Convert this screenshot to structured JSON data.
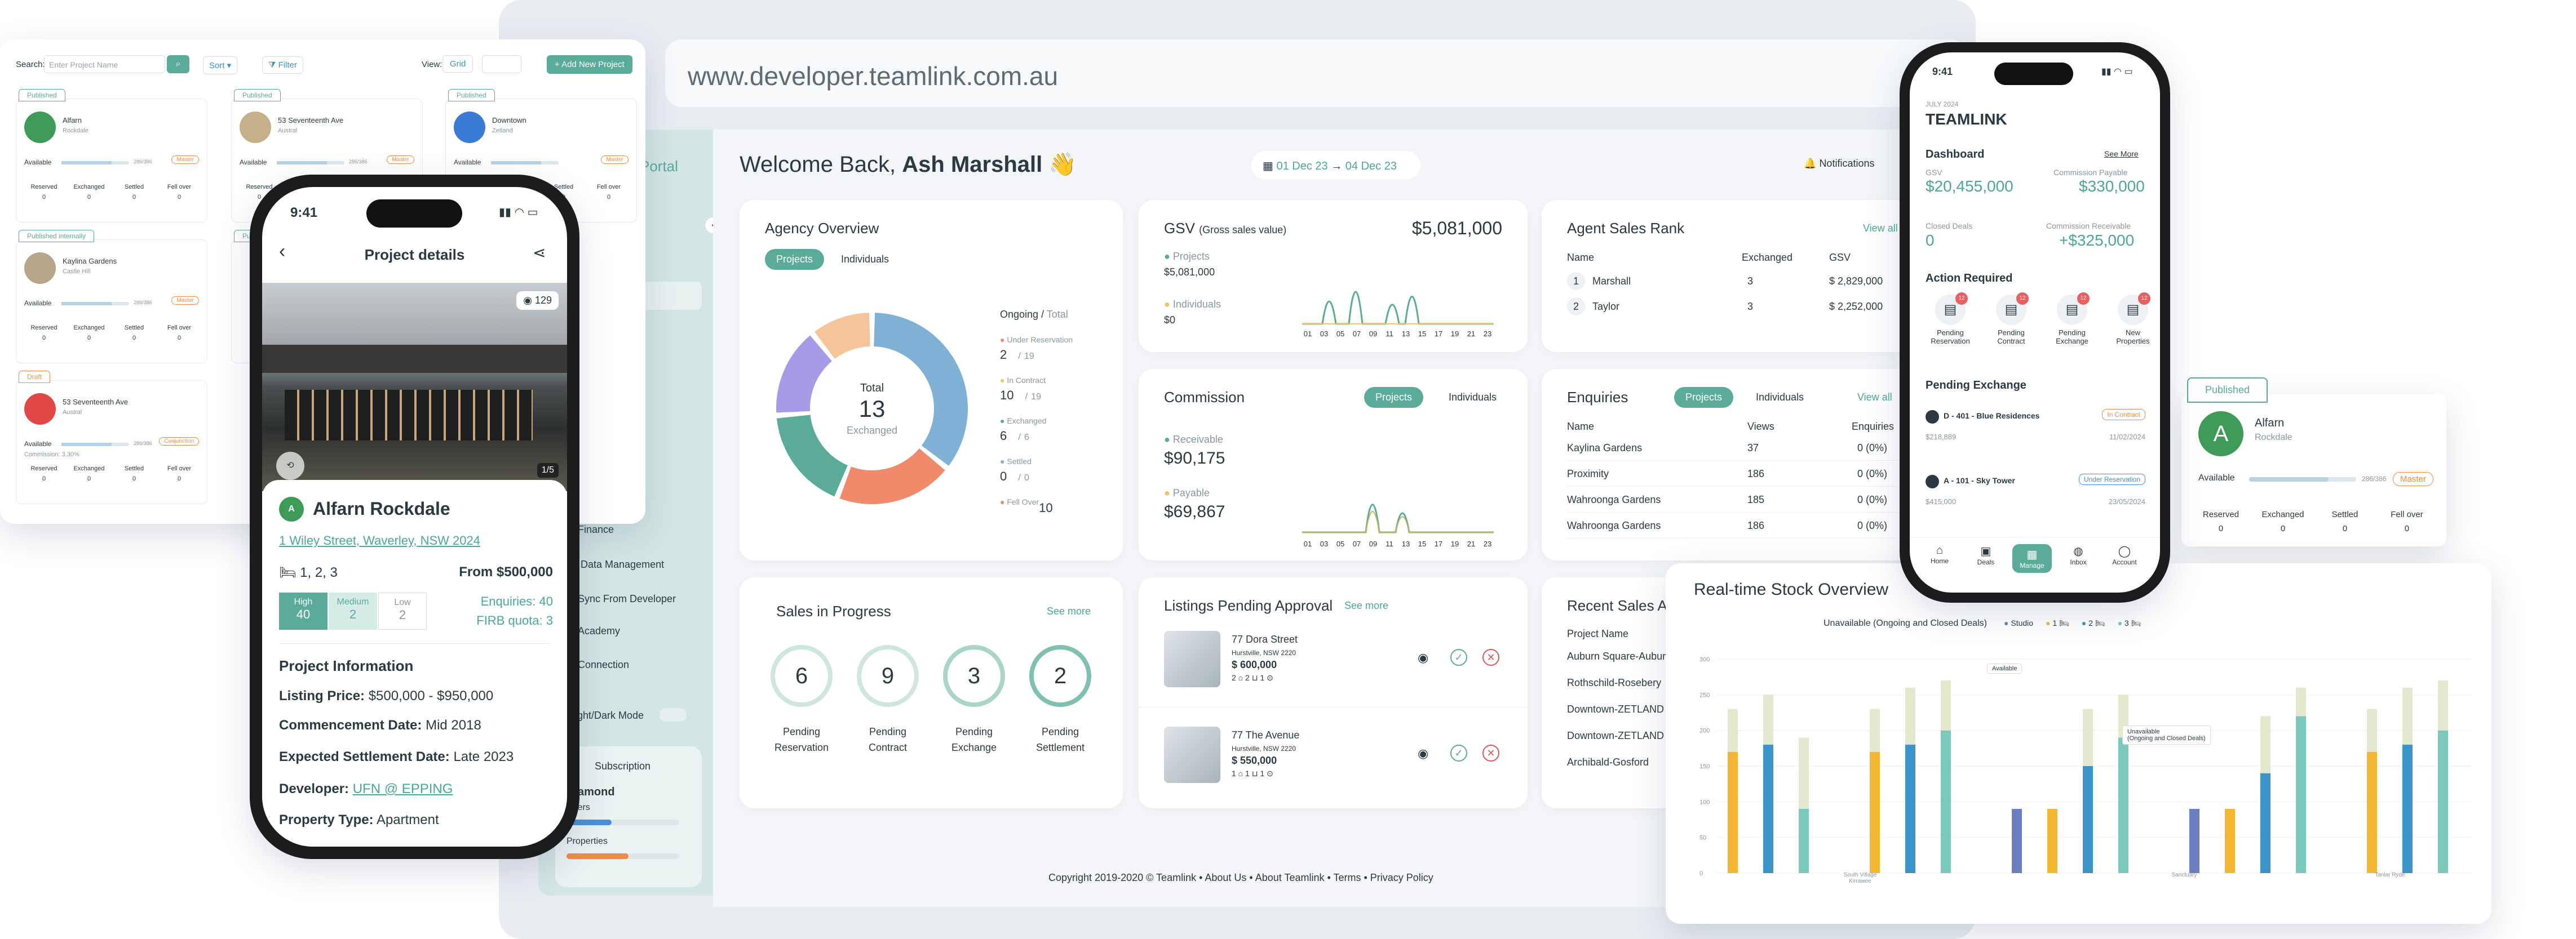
{
  "browser": {
    "url": "www.developer.teamlink.com.au"
  },
  "sidebar": {
    "portal_label": "Portal",
    "items": [
      "Finance",
      "Data Management",
      "Sync From Developer",
      "Academy",
      "Connection",
      "Light/Dark Mode"
    ],
    "subscription_label": "Subscription",
    "tier": "Diamond",
    "sub_rows": [
      "Users",
      "Properties"
    ]
  },
  "header": {
    "welcome": "Welcome Back,",
    "user": "Ash Marshall",
    "wave": "👋",
    "date_from": "01 Dec 23",
    "date_to": "04 Dec 23",
    "notifications": "Notifications"
  },
  "agency": {
    "title": "Agency Overview",
    "tabs": [
      "Projects",
      "Individuals"
    ],
    "total_label": "Total",
    "total": "13",
    "exchanged": "Exchanged",
    "col_head": "Ongoing",
    "col_head2": "Total",
    "stats": [
      {
        "label": "Under Reservation",
        "value": "2",
        "total": "19",
        "color": "#f08a6a"
      },
      {
        "label": "In Contract",
        "value": "10",
        "total": "19",
        "color": "#f4c26a"
      },
      {
        "label": "Exchanged",
        "value": "6",
        "total": "6",
        "color": "#5aab98"
      },
      {
        "label": "Settled",
        "value": "0",
        "total": "0",
        "color": "#7fb1d4"
      },
      {
        "label": "Fell Over",
        "value": "10",
        "total": "",
        "color": "#f08a6a"
      }
    ]
  },
  "donut": [
    {
      "value": 30,
      "color": "#7fb1d4"
    },
    {
      "value": 17,
      "color": "#f08a6a"
    },
    {
      "value": 15,
      "color": "#5aab98"
    },
    {
      "value": 13,
      "color": "#a79be8"
    },
    {
      "value": 9,
      "color": "#f5c49b"
    }
  ],
  "gsv": {
    "title": "GSV",
    "subtitle": "(Gross sales value)",
    "total": "$5,081,000",
    "projects_label": "Projects",
    "projects_value": "$5,081,000",
    "individuals_label": "Individuals",
    "individuals_value": "$0",
    "ticks": [
      "01",
      "03",
      "05",
      "07",
      "09",
      "11",
      "13",
      "15",
      "17",
      "19",
      "21",
      "23"
    ]
  },
  "commission": {
    "title": "Commission",
    "tabs": [
      "Projects",
      "Individuals"
    ],
    "receivable_label": "Receivable",
    "receivable": "$90,175",
    "payable_label": "Payable",
    "payable": "$69,867",
    "ticks": [
      "01",
      "03",
      "05",
      "07",
      "09",
      "11",
      "13",
      "15",
      "17",
      "19",
      "21",
      "23"
    ]
  },
  "agent_rank": {
    "title": "Agent Sales Rank",
    "view_all": "View all",
    "headers": [
      "Name",
      "Exchanged",
      "GSV"
    ],
    "rows": [
      {
        "rank": "1",
        "name": "Marshall",
        "exchanged": "3",
        "gsv": "$ 2,829,000"
      },
      {
        "rank": "2",
        "name": "Taylor",
        "exchanged": "3",
        "gsv": "$ 2,252,000"
      }
    ]
  },
  "enquiries": {
    "title": "Enquiries",
    "tabs": [
      "Projects",
      "Individuals"
    ],
    "view_all": "View all",
    "headers": [
      "Name",
      "Views",
      "Enquiries"
    ],
    "rows": [
      {
        "name": "Kaylina Gardens",
        "views": "37",
        "enq": "0 (0%)"
      },
      {
        "name": "Proximity",
        "views": "186",
        "enq": "0 (0%)"
      },
      {
        "name": "Wahroonga Gardens",
        "views": "185",
        "enq": "0 (0%)"
      },
      {
        "name": "Wahroonga Gardens",
        "views": "186",
        "enq": "0 (0%)"
      }
    ]
  },
  "sales_progress": {
    "title": "Sales in Progress",
    "see_more": "See more",
    "items": [
      {
        "value": "6",
        "label1": "Pending",
        "label2": "Reservation"
      },
      {
        "value": "9",
        "label1": "Pending",
        "label2": "Contract"
      },
      {
        "value": "3",
        "label1": "Pending",
        "label2": "Exchange"
      },
      {
        "value": "2",
        "label1": "Pending",
        "label2": "Settlement"
      }
    ]
  },
  "listings": {
    "title": "Listings Pending Approval",
    "see_more": "See more",
    "items": [
      {
        "name": "77 Dora Street",
        "suburb": "Hurstville, NSW 2220",
        "price": "$ 600,000",
        "feat": "2 ⌂ 2 ⊔ 1 ⊙"
      },
      {
        "name": "77 The Avenue",
        "suburb": "Hurstville, NSW 2220",
        "price": "$ 550,000",
        "feat": "1 ⌂ 1 ⊔ 1 ⊙"
      }
    ]
  },
  "recent_sales": {
    "title": "Recent Sales Ac",
    "header": "Project Name",
    "rows": [
      "Auburn Square-Auburn",
      "Rothschild-Rosebery",
      "Downtown-ZETLAND",
      "Downtown-ZETLAND",
      "Archibald-Gosford"
    ]
  },
  "footer": "Copyright 2019-2020 © Teamlink • About Us • About Teamlink • Terms • Privacy Policy",
  "projects_list": {
    "search_label": "Search:",
    "search_placeholder": "Enter Project Name",
    "sort": "Sort",
    "filter": "Filter",
    "view": "View:",
    "grid": "Grid",
    "add": "+ Add New Project",
    "cards": [
      {
        "badge": "Published",
        "name": "Alfarn",
        "sub": "Rockdale",
        "tag": "Master",
        "avail": "Available",
        "count": "286/386"
      },
      {
        "badge": "Published",
        "name": "53 Seventeenth Ave",
        "sub": "Austral",
        "tag": "Master",
        "avail": "Available",
        "count": "286/386"
      },
      {
        "badge": "Published",
        "name": "Downtown",
        "sub": "Zetland",
        "tag": "Master",
        "avail": "Available",
        "count": ""
      },
      {
        "badge": "Published internally",
        "name": "Kaylina Gardens",
        "sub": "Castle Hill",
        "tag": "Master",
        "avail": "Available",
        "count": "286/386"
      },
      {
        "badge": "Published",
        "name": "",
        "sub": "",
        "tag": "Master",
        "avail": "",
        "count": ""
      },
      {
        "badge": "Draft",
        "name": "53 Seventeenth Ave",
        "sub": "Austral",
        "tag": "Conjunction",
        "avail": "Available",
        "count": "286/386",
        "commission": "Commission: 3.30%"
      }
    ],
    "stat_labels": [
      "Reserved",
      "Exchanged",
      "Settled",
      "Fell over"
    ],
    "stat_values": [
      "0",
      "0",
      "0",
      "0"
    ]
  },
  "phone_left": {
    "time": "9:41",
    "title": "Project details",
    "views": "129",
    "photo_counter": "1/5",
    "name": "Alfarn Rockdale",
    "address": "1 Wiley Street, Waverley, NSW 2024",
    "beds": "1, 2, 3",
    "from": "From $500,000",
    "levels": [
      {
        "label": "High",
        "value": "40"
      },
      {
        "label": "Medium",
        "value": "2"
      },
      {
        "label": "Low",
        "value": "2"
      }
    ],
    "enquiries": "Enquiries: 40",
    "firb": "FIRB quota: 3",
    "info_title": "Project Information",
    "listing_price_label": "Listing Price:",
    "listing_price": "$500,000 - $950,000",
    "commence_label": "Commencement Date:",
    "commence": "Mid 2018",
    "settle_label": "Expected Settlement Date:",
    "settle": "Late 2023",
    "dev_label": "Developer:",
    "dev": "UFN @ EPPING",
    "type_label": "Property Type:",
    "type": "Apartment"
  },
  "phone_right": {
    "time": "9:41",
    "date": "JULY 2024",
    "brand": "TEAMLINK",
    "dash": "Dashboard",
    "see_more": "See More",
    "gsv_label": "GSV",
    "gsv": "$20,455,000",
    "cp_label": "Commission Payable",
    "cp": "$330,000",
    "cd_label": "Closed Deals",
    "cd": "0",
    "cr_label": "Commission Receivable",
    "cr": "+$325,000",
    "action": "Action Required",
    "actions": [
      {
        "l1": "Pending",
        "l2": "Reservation",
        "n": "12"
      },
      {
        "l1": "Pending",
        "l2": "Contract",
        "n": "12"
      },
      {
        "l1": "Pending",
        "l2": "Exchange",
        "n": "12"
      },
      {
        "l1": "New",
        "l2": "Properties",
        "n": "12"
      }
    ],
    "pending_ex": "Pending Exchange",
    "deals": [
      {
        "name": "D - 401 - Blue Residences",
        "status": "In Contract",
        "price": "$218,889",
        "date": "11/02/2024"
      },
      {
        "name": "A - 101 - Sky Tower",
        "status": "Under Reservation",
        "price": "$415,000",
        "date": "23/05/2024"
      }
    ],
    "nav": [
      "Home",
      "Deals",
      "Manage",
      "Inbox",
      "Account"
    ]
  },
  "alfarn_card": {
    "badge": "Published",
    "name": "Alfarn",
    "sub": "Rockdale",
    "avail": "Available",
    "count": "286/386",
    "tag": "Master",
    "labels": [
      "Reserved",
      "Exchanged",
      "Settled",
      "Fell over"
    ],
    "values": [
      "0",
      "0",
      "0",
      "0"
    ]
  },
  "stock": {
    "title": "Real-time Stock Overview",
    "legend_title": "Unavailable (Ongoing and Closed Deals)",
    "legend": [
      {
        "name": "Studio",
        "color": "#6b7fc0"
      },
      {
        "name": "1 🛏",
        "color": "#f4b733"
      },
      {
        "name": "2 🛏",
        "color": "#3a93c9"
      },
      {
        "name": "3 🛏",
        "color": "#7ac9bc"
      }
    ],
    "yticks": [
      "300",
      "250",
      "200",
      "150",
      "100",
      "50",
      "0"
    ],
    "tooltip1": "Available",
    "tooltip2": "Unavailable",
    "tooltip3": "(Ongoing and Closed Deals)",
    "groups": [
      "South Village Kirrawee",
      "Sanctuary",
      "Tanlar Ryde"
    ]
  },
  "stock_chart": {
    "type": "bar",
    "values": [
      {
        "u": 170,
        "a": 60,
        "c": "#f4b733"
      },
      {
        "u": 180,
        "a": 70,
        "c": "#3a93c9"
      },
      {
        "u": 90,
        "a": 100,
        "c": "#7ac9bc"
      },
      {
        "u": 0,
        "a": 0,
        "c": "#fff"
      },
      {
        "u": 170,
        "a": 60,
        "c": "#f4b733"
      },
      {
        "u": 180,
        "a": 80,
        "c": "#3a93c9"
      },
      {
        "u": 200,
        "a": 70,
        "c": "#7ac9bc"
      },
      {
        "u": 0,
        "a": 0,
        "c": "#fff"
      },
      {
        "u": 90,
        "a": 0,
        "c": "#6b7fc0"
      },
      {
        "u": 90,
        "a": 0,
        "c": "#f4b733"
      },
      {
        "u": 150,
        "a": 80,
        "c": "#3a93c9"
      },
      {
        "u": 190,
        "a": 60,
        "c": "#7ac9bc"
      },
      {
        "u": 0,
        "a": 0,
        "c": "#fff"
      },
      {
        "u": 90,
        "a": 0,
        "c": "#6b7fc0"
      },
      {
        "u": 90,
        "a": 0,
        "c": "#f4b733"
      },
      {
        "u": 140,
        "a": 80,
        "c": "#3a93c9"
      },
      {
        "u": 220,
        "a": 40,
        "c": "#7ac9bc"
      },
      {
        "u": 0,
        "a": 0,
        "c": "#fff"
      },
      {
        "u": 170,
        "a": 60,
        "c": "#f4b733"
      },
      {
        "u": 180,
        "a": 80,
        "c": "#3a93c9"
      },
      {
        "u": 200,
        "a": 70,
        "c": "#7ac9bc"
      }
    ]
  }
}
